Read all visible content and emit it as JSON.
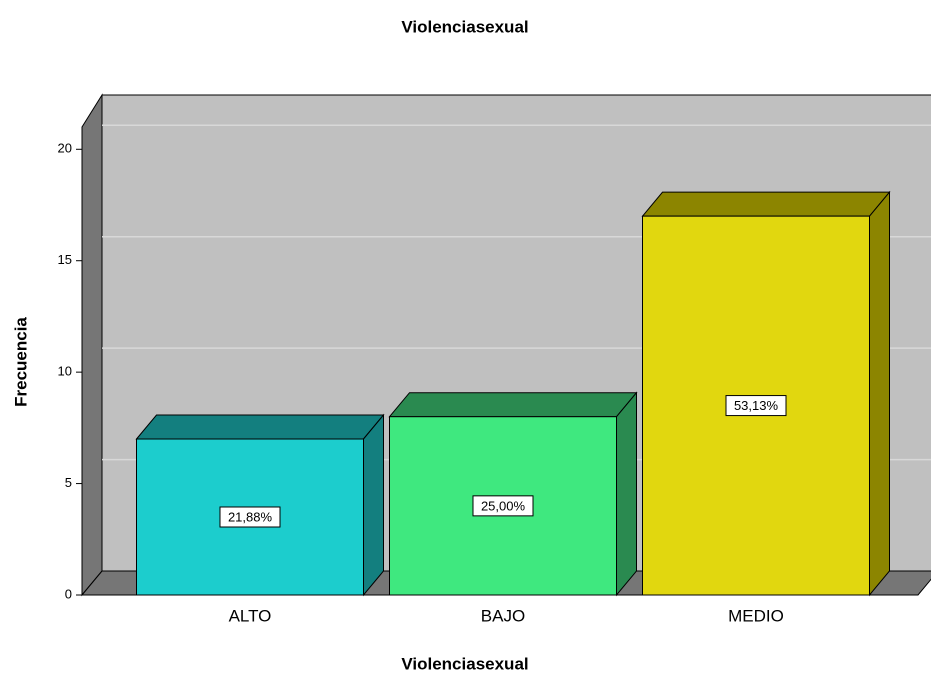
{
  "chart_data": {
    "type": "bar3d",
    "title": "Violenciasexual",
    "x_label": "Violenciasexual",
    "y_label": "Frecuencia",
    "categories": [
      "ALTO",
      "BAJO",
      "MEDIO"
    ],
    "values": [
      7,
      8,
      17
    ],
    "percentages": [
      21.88,
      25.0,
      53.13
    ],
    "percentage_labels": [
      "21,88%",
      "25,00%",
      "53,13%"
    ],
    "colors": [
      "#1ccdcd",
      "#3fe87f",
      "#e1d70f"
    ],
    "side_colors": [
      "#137f7f",
      "#2a8a50",
      "#8c8500"
    ],
    "ylim": [
      0,
      21
    ],
    "yticks": [
      0,
      5,
      10,
      15,
      20
    ],
    "grid": true
  }
}
